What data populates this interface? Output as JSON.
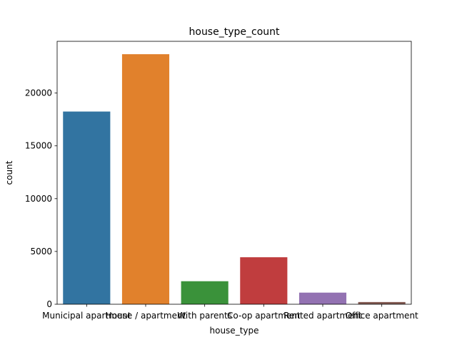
{
  "chart_data": {
    "type": "bar",
    "title": "house_type_count",
    "xlabel": "house_type",
    "ylabel": "count",
    "categories": [
      "Municipal apartment",
      "House / apartment",
      "With parents",
      "Co-op apartment",
      "Rented apartment",
      "Office apartment"
    ],
    "values": [
      18250,
      23680,
      2180,
      4450,
      1100,
      210
    ],
    "ylim": [
      0,
      24900
    ],
    "yticks": [
      0,
      5000,
      10000,
      15000,
      20000
    ],
    "ytick_labels": [
      "0",
      "5000",
      "10000",
      "15000",
      "20000"
    ],
    "colors": [
      "#3274a1",
      "#e1812c",
      "#3a923a",
      "#c03d3e",
      "#9372b2",
      "#845b53"
    ],
    "grid": false,
    "legend": "none"
  }
}
